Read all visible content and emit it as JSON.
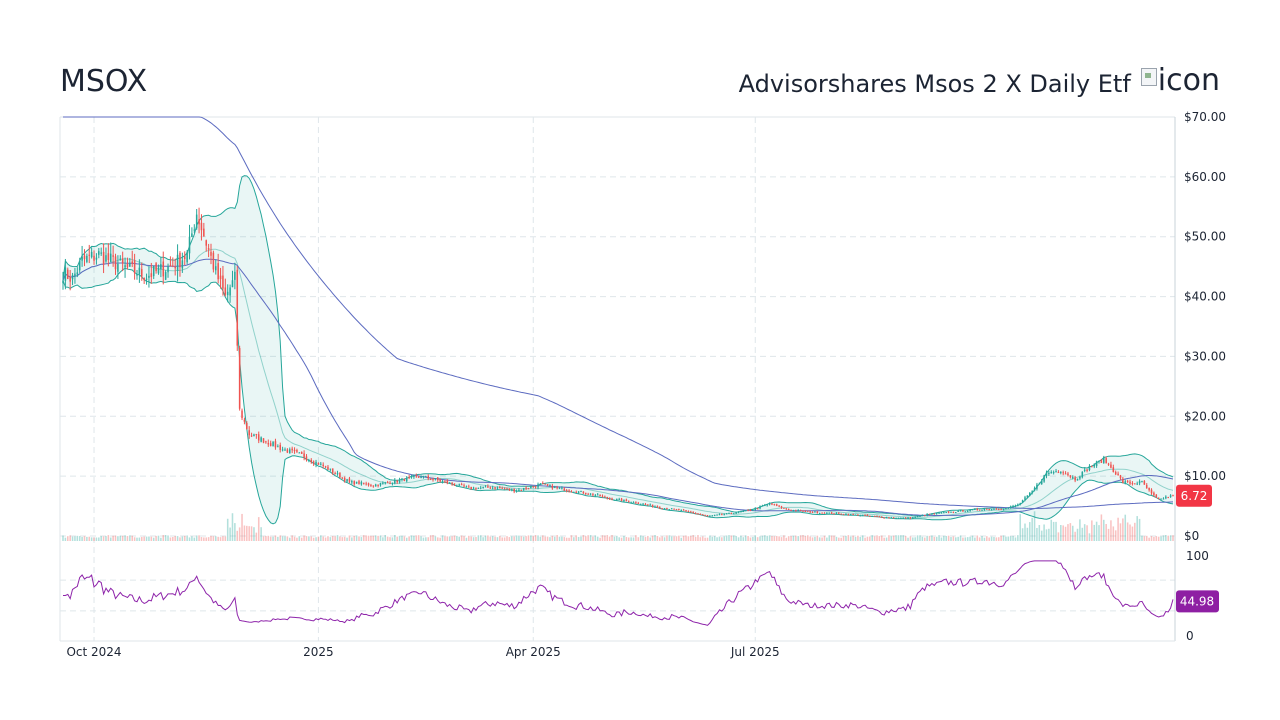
{
  "header": {
    "ticker": "MSOX",
    "name": "Advisorshares Msos 2 X Daily Etf",
    "logo_alt": "icon"
  },
  "chart_data": {
    "type": "candlestick",
    "price_axis": {
      "ylim": [
        0,
        70
      ],
      "ticks": [
        0,
        10,
        20,
        30,
        40,
        50,
        60,
        70
      ],
      "tick_labels": [
        "$0",
        "$10.00",
        "$20.00",
        "$30.00",
        "$40.00",
        "$50.00",
        "$60.00",
        "$70.00"
      ]
    },
    "rsi_axis": {
      "ylim": [
        0,
        100
      ],
      "tick_labels": [
        "100",
        "0"
      ],
      "guide_levels": [
        30,
        70
      ]
    },
    "x_axis": {
      "tick_labels": [
        "Oct 2024",
        "2025",
        "Apr 2025",
        "Jul 2025"
      ]
    },
    "last_price_label": "6.72",
    "last_rsi_label": "44.98",
    "colors": {
      "up": "#26a69a",
      "down": "#ef5350",
      "band": "#26a69a",
      "sma": "#5c6bc0",
      "rsi": "#8e24aa",
      "price_badge": "#f23645",
      "rsi_badge": "#8e1fa3",
      "grid": "#dfe6ea"
    },
    "anchors": [
      [
        0,
        44
      ],
      [
        4,
        43
      ],
      [
        8,
        46
      ],
      [
        15,
        47
      ],
      [
        25,
        45
      ],
      [
        35,
        43.5
      ],
      [
        45,
        45
      ],
      [
        52,
        47
      ],
      [
        56,
        54
      ],
      [
        60,
        49
      ],
      [
        64,
        44
      ],
      [
        68,
        40
      ],
      [
        72,
        43
      ],
      [
        74,
        21
      ],
      [
        78,
        17
      ],
      [
        84,
        16
      ],
      [
        92,
        14.5
      ],
      [
        100,
        13.5
      ],
      [
        110,
        11.5
      ],
      [
        120,
        9
      ],
      [
        130,
        8.5
      ],
      [
        140,
        9.2
      ],
      [
        150,
        10
      ],
      [
        160,
        9
      ],
      [
        170,
        8
      ],
      [
        180,
        8.1
      ],
      [
        190,
        7.6
      ],
      [
        200,
        8.6
      ],
      [
        210,
        7.8
      ],
      [
        220,
        7.1
      ],
      [
        230,
        6.2
      ],
      [
        240,
        5.6
      ],
      [
        250,
        4.8
      ],
      [
        260,
        4.2
      ],
      [
        270,
        3.3
      ],
      [
        278,
        3.7
      ],
      [
        288,
        4.3
      ],
      [
        296,
        5.4
      ],
      [
        304,
        4.4
      ],
      [
        314,
        4.0
      ],
      [
        330,
        3.6
      ],
      [
        345,
        3.1
      ],
      [
        355,
        3.0
      ],
      [
        362,
        3.6
      ],
      [
        372,
        4.0
      ],
      [
        385,
        4.5
      ],
      [
        395,
        4.6
      ],
      [
        400,
        5.2
      ],
      [
        406,
        7.4
      ],
      [
        412,
        10.5
      ],
      [
        418,
        11
      ],
      [
        424,
        9.5
      ],
      [
        430,
        11.5
      ],
      [
        436,
        12.8
      ],
      [
        440,
        11
      ],
      [
        444,
        9
      ],
      [
        448,
        8.8
      ],
      [
        452,
        9
      ],
      [
        456,
        7
      ],
      [
        459,
        6
      ],
      [
        462,
        6.5
      ],
      [
        465,
        6.72
      ]
    ]
  }
}
